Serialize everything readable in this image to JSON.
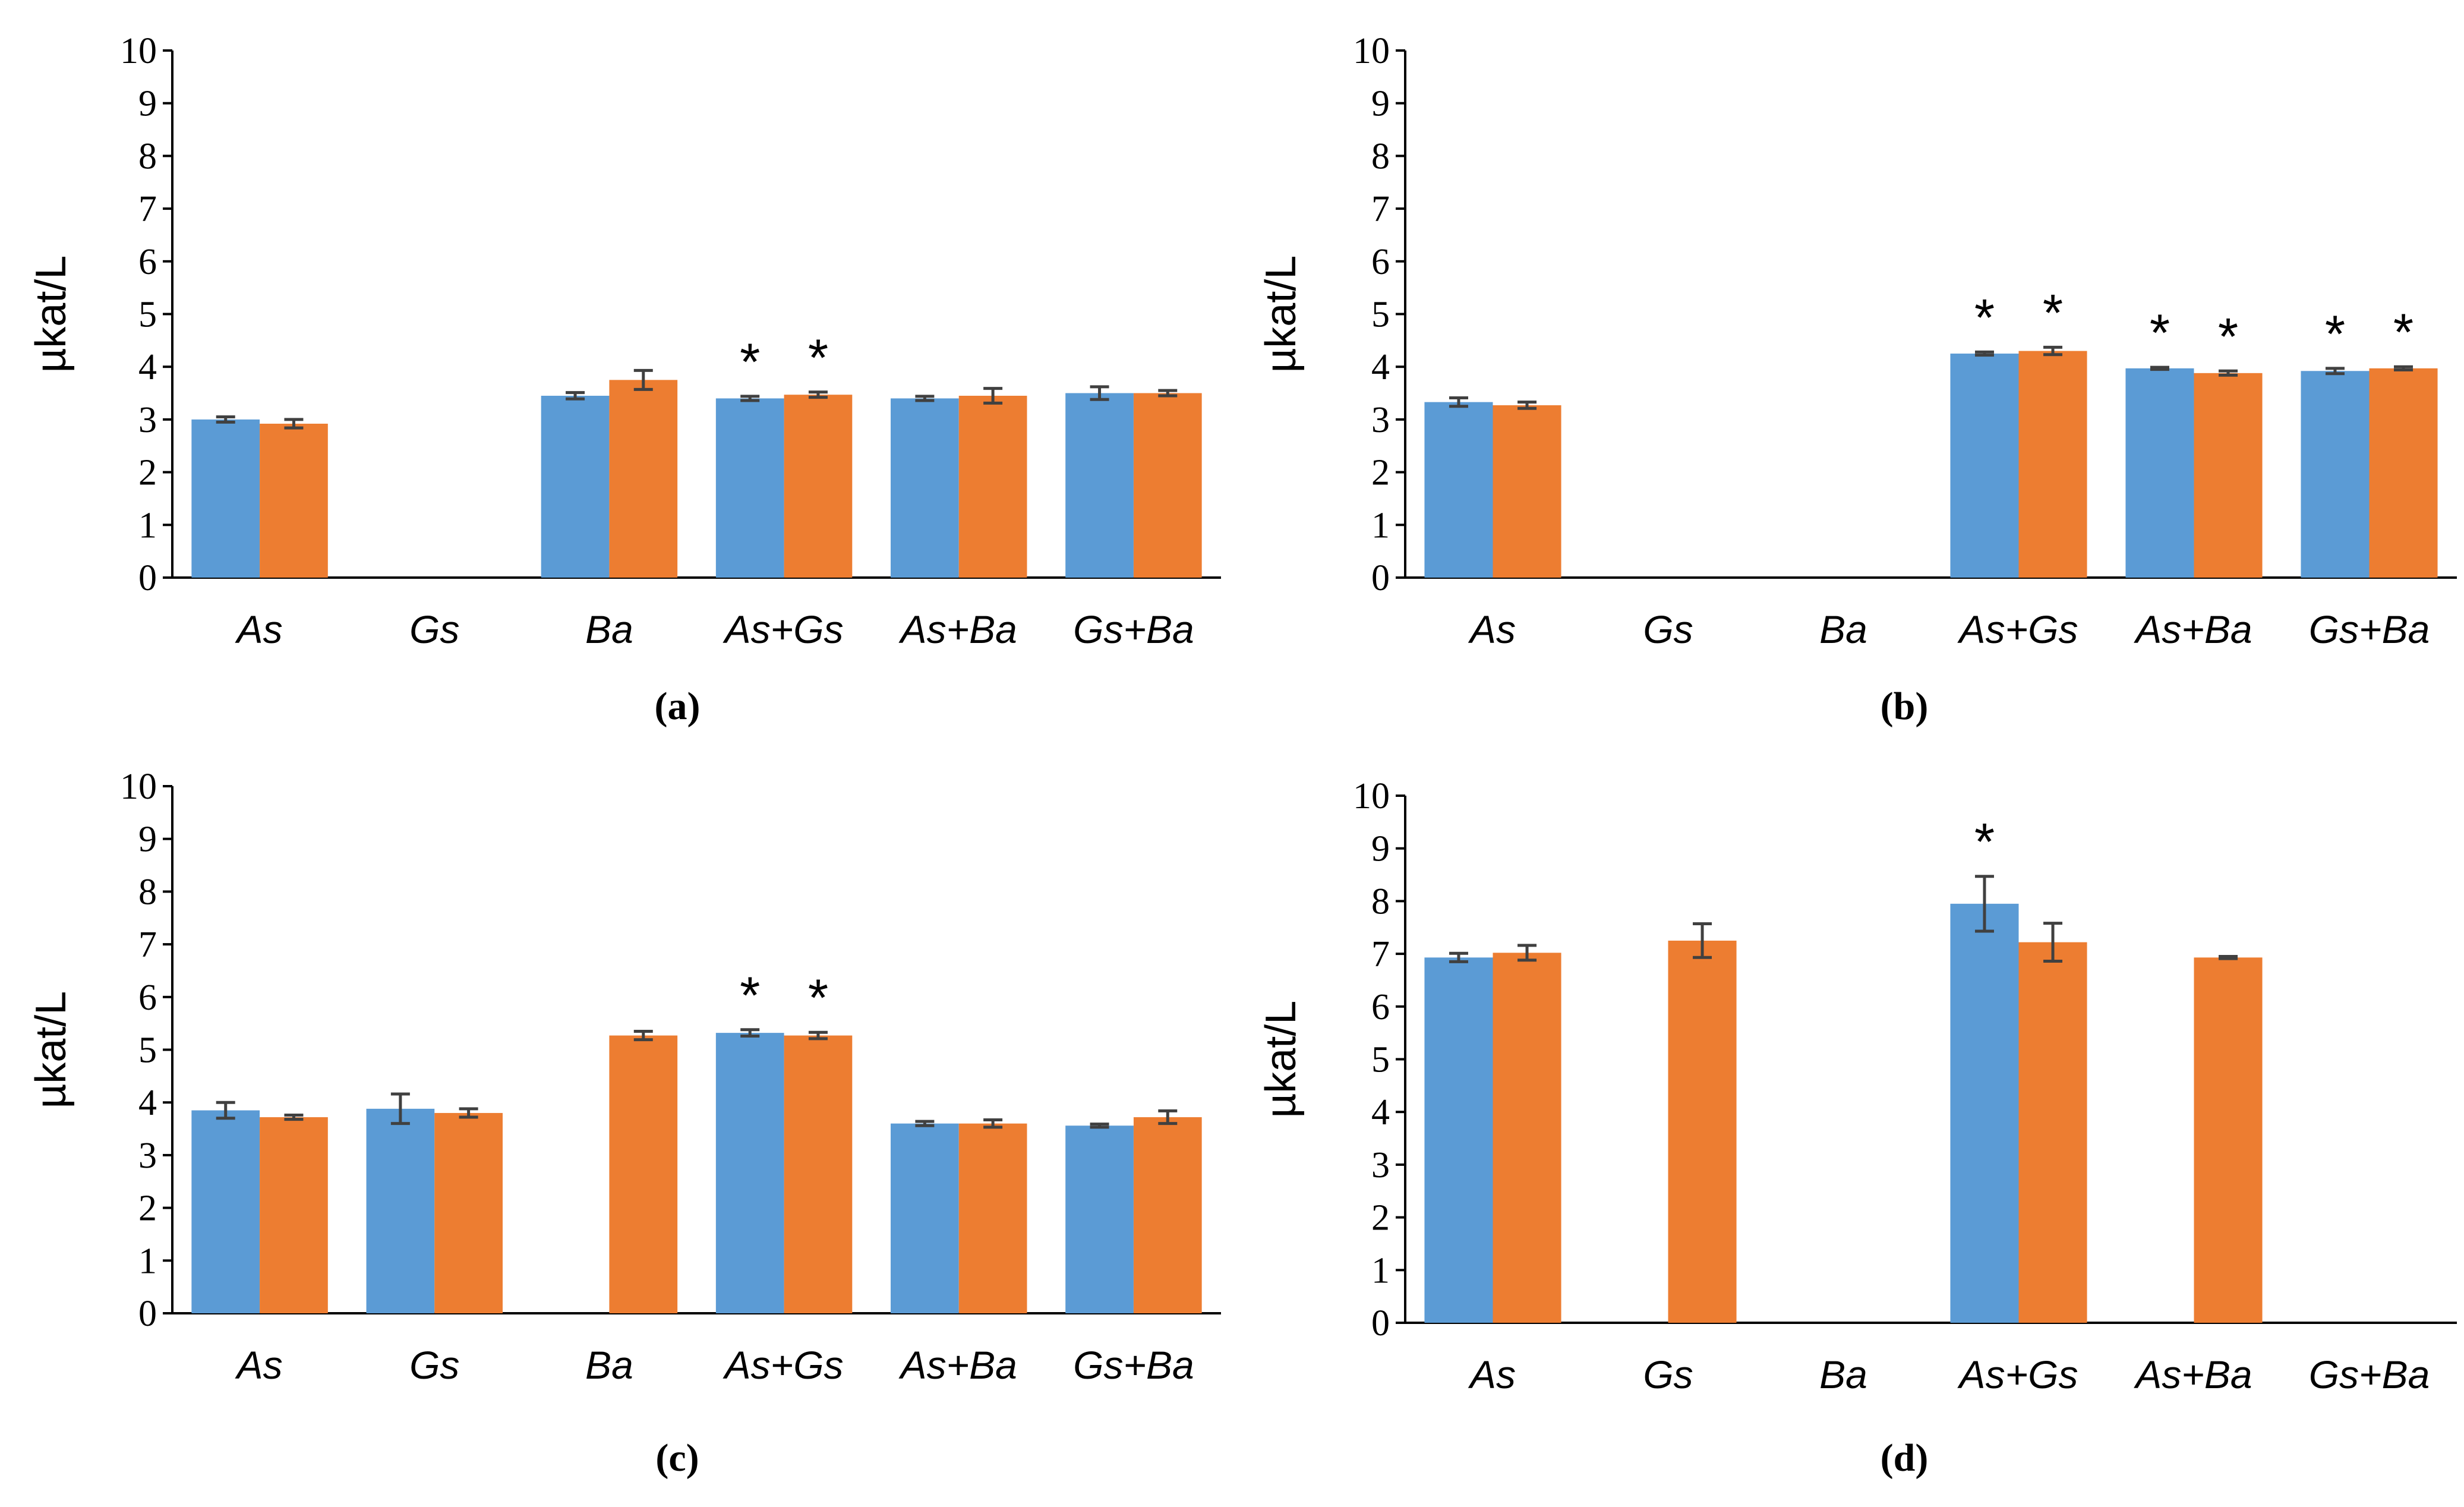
{
  "colors": {
    "series1": "#5b9bd5",
    "series2": "#ed7d31",
    "axis": "#000000",
    "errorbar": "#404040"
  },
  "chart_data": [
    {
      "type": "bar",
      "panel_label": "(a)",
      "panel_letter": "a",
      "ylabel": "µkat/L",
      "ylim": [
        0,
        10
      ],
      "yticks": [
        "0",
        "1",
        "2",
        "3",
        "4",
        "5",
        "6",
        "7",
        "8",
        "9",
        "10"
      ],
      "categories": [
        "As",
        "Gs",
        "Ba",
        "As+Gs",
        "As+Ba",
        "Gs+Ba"
      ],
      "series": [
        {
          "values": [
            3.0,
            0,
            3.45,
            3.4,
            3.4,
            3.5
          ],
          "errors": [
            0.05,
            0,
            0.06,
            0.04,
            0.04,
            0.12
          ]
        },
        {
          "values": [
            2.92,
            0,
            3.75,
            3.47,
            3.45,
            3.5
          ],
          "errors": [
            0.08,
            0,
            0.18,
            0.05,
            0.14,
            0.05
          ]
        }
      ],
      "asterisks": [
        [
          0,
          0,
          0,
          1,
          0,
          0
        ],
        [
          0,
          0,
          0,
          1,
          0,
          0
        ]
      ]
    },
    {
      "type": "bar",
      "panel_label": "(b)",
      "panel_letter": "b",
      "ylabel": "µkat/L",
      "ylim": [
        0,
        10
      ],
      "yticks": [
        "0",
        "1",
        "2",
        "3",
        "4",
        "5",
        "6",
        "7",
        "8",
        "9",
        "10"
      ],
      "categories": [
        "As",
        "Gs",
        "Ba",
        "As+Gs",
        "As+Ba",
        "Gs+Ba"
      ],
      "series": [
        {
          "values": [
            3.33,
            0,
            0,
            4.25,
            3.97,
            3.92
          ],
          "errors": [
            0.08,
            0,
            0,
            0.03,
            0.02,
            0.05
          ]
        },
        {
          "values": [
            3.27,
            0,
            0,
            4.3,
            3.88,
            3.97
          ],
          "errors": [
            0.06,
            0,
            0,
            0.07,
            0.04,
            0.03
          ]
        }
      ],
      "asterisks": [
        [
          0,
          0,
          0,
          1,
          1,
          1
        ],
        [
          0,
          0,
          0,
          1,
          1,
          1
        ]
      ]
    },
    {
      "type": "bar",
      "panel_label": "(c)",
      "panel_letter": "c",
      "ylabel": "µkat/L",
      "ylim": [
        0,
        10
      ],
      "yticks": [
        "0",
        "1",
        "2",
        "3",
        "4",
        "5",
        "6",
        "7",
        "8",
        "9",
        "10"
      ],
      "categories": [
        "As",
        "Gs",
        "Ba",
        "As+Gs",
        "As+Ba",
        "Gs+Ba"
      ],
      "series": [
        {
          "values": [
            3.85,
            3.88,
            0,
            5.32,
            3.6,
            3.56
          ],
          "errors": [
            0.15,
            0.28,
            0,
            0.06,
            0.04,
            0.03
          ]
        },
        {
          "values": [
            3.72,
            3.8,
            5.27,
            5.27,
            3.6,
            3.72
          ],
          "errors": [
            0.04,
            0.08,
            0.08,
            0.06,
            0.07,
            0.12
          ]
        }
      ],
      "asterisks": [
        [
          0,
          0,
          0,
          1,
          0,
          0
        ],
        [
          0,
          0,
          0,
          1,
          0,
          0
        ]
      ]
    },
    {
      "type": "bar",
      "panel_label": "(d)",
      "panel_letter": "d",
      "ylabel": "µkat/L",
      "ylim": [
        0,
        10
      ],
      "yticks": [
        "0",
        "1",
        "2",
        "3",
        "4",
        "5",
        "6",
        "7",
        "8",
        "9",
        "10"
      ],
      "categories": [
        "As",
        "Gs",
        "Ba",
        "As+Gs",
        "As+Ba",
        "Gs+Ba"
      ],
      "series": [
        {
          "values": [
            6.93,
            0,
            0,
            7.95,
            0,
            0
          ],
          "errors": [
            0.08,
            0,
            0,
            0.52,
            0,
            0
          ]
        },
        {
          "values": [
            7.02,
            7.25,
            0,
            7.22,
            6.93,
            0
          ],
          "errors": [
            0.14,
            0.32,
            0,
            0.36,
            0.02,
            0
          ]
        }
      ],
      "asterisks": [
        [
          0,
          0,
          0,
          1,
          0,
          0
        ],
        [
          0,
          0,
          0,
          0,
          0,
          0
        ]
      ]
    }
  ]
}
